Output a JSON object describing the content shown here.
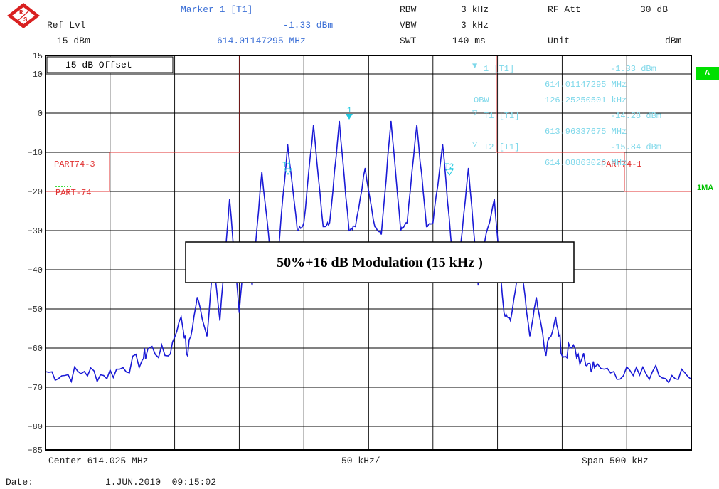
{
  "header": {
    "marker_label": "Marker 1 [T1]",
    "marker_level": "-1.33 dBm",
    "marker_freq": "614.01147295 MHz",
    "ref_label": "Ref Lvl",
    "ref_value": "15 dBm",
    "rbw_label": "RBW",
    "rbw_value": "3 kHz",
    "vbw_label": "VBW",
    "vbw_value": "3 kHz",
    "swt_label": "SWT",
    "swt_value": "140 ms",
    "rfatt_label": "RF Att",
    "rfatt_value": "30 dB",
    "unit_label": "Unit",
    "unit_value": "dBm"
  },
  "offset_box": "15 dB  Offset",
  "y_ticks": [
    "15",
    "10",
    "0",
    "−10",
    "−20",
    "−30",
    "−40",
    "−50",
    "−60",
    "−70",
    "−80",
    "−85"
  ],
  "side_badges": {
    "a": "A",
    "ma": "1MA"
  },
  "limit_lines": {
    "left_label": "PART74-3",
    "left_label2": "PART-74",
    "right_label": "PART74-1",
    "color": "#e03030"
  },
  "marker_info": {
    "m1": "1 [T1]",
    "m1_level": "-1.33 dBm",
    "m1_freq": "614.01147295 MHz",
    "obw_label": "OBW",
    "obw_value": "126.25250501 kHz",
    "t1": "T1 [T1]",
    "t1_level": "-14.28 dBm",
    "t1_freq": "613.96337675 MHz",
    "t2": "T2 [T1]",
    "t2_level": "-15.84 dBm",
    "t2_freq": "614.08863026 MHz",
    "color": "#7fd8ea"
  },
  "markers": {
    "m1": "1",
    "t1": "T1",
    "t2": "T2"
  },
  "annotation": "50%+16 dB Modulation (15 kHz )",
  "footer": {
    "center": "Center 614.025 MHz",
    "per_div": "50 kHz/",
    "span": "Span 500 kHz",
    "date_label": "Date:",
    "date_value": "1.JUN.2010  09:15:02"
  },
  "chart_data": {
    "type": "line",
    "xlabel": "",
    "ylabel": "",
    "xlim": [
      613.775,
      614.275
    ],
    "ylim": [
      -85,
      15
    ],
    "trace_color": "#1a1ad6",
    "series": [
      {
        "x": [
          613.775,
          613.79,
          613.805,
          613.82,
          613.835,
          613.85,
          613.855,
          613.87,
          613.88,
          613.885,
          613.8925,
          613.9,
          613.905,
          613.91,
          613.9175,
          613.925,
          613.93,
          613.935,
          613.9425,
          613.95,
          613.955,
          613.9625,
          613.97,
          613.975,
          613.9825,
          613.99,
          613.995,
          614.0025,
          614.01,
          614.015,
          614.0225,
          614.03,
          614.035,
          614.0425,
          614.05,
          614.055,
          614.0625,
          614.07,
          614.075,
          614.0825,
          614.09,
          614.095,
          614.1025,
          614.11,
          614.115,
          614.1225,
          614.13,
          614.135,
          614.1425,
          614.15,
          614.155,
          614.1625,
          614.17,
          614.175,
          614.1825,
          614.19,
          614.195,
          614.2,
          614.215,
          614.23,
          614.245,
          614.26,
          614.275
        ],
        "y": [
          -66,
          -67,
          -66,
          -67,
          -65,
          -63,
          -60,
          -62,
          -52,
          -62,
          -47,
          -57,
          -37,
          -53,
          -22,
          -51,
          -33,
          -44,
          -15,
          -38,
          -36,
          -8,
          -30,
          -28,
          -3,
          -29,
          -28,
          -2,
          -30,
          -29,
          -14,
          -29,
          -31,
          -2,
          -30,
          -28,
          -3,
          -29,
          -28,
          -8,
          -36,
          -38,
          -14,
          -44,
          -33,
          -22,
          -51,
          -53,
          -37,
          -57,
          -47,
          -62,
          -52,
          -62,
          -60,
          -63,
          -64,
          -65,
          -66,
          -67,
          -66,
          -67,
          -68
        ]
      }
    ]
  }
}
